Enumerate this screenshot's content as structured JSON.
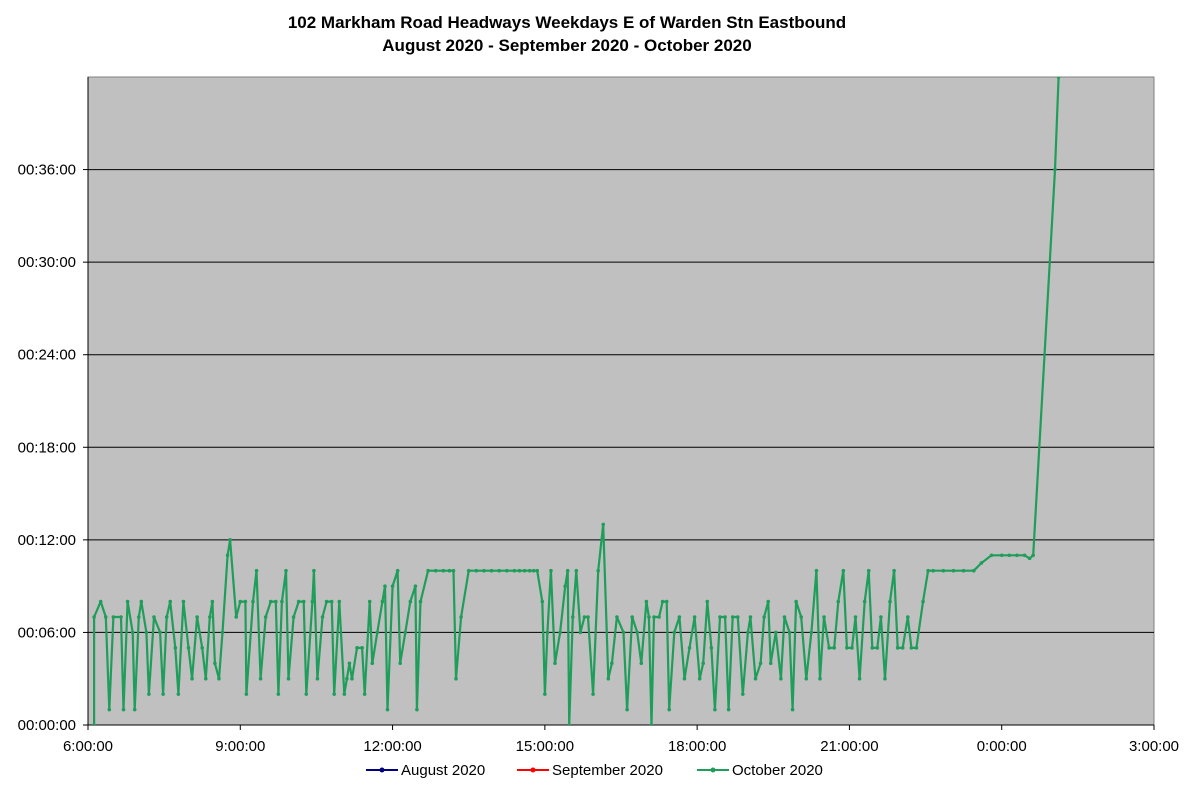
{
  "chart_data": {
    "type": "line",
    "title": "102 Markham Road Headways Weekdays E of Warden Stn Eastbound",
    "subtitle": "August 2020 - September 2020 - October 2020",
    "xlabel": "",
    "ylabel": "",
    "x_unit": "hours since 0:00",
    "y_unit": "minutes",
    "xlim": [
      6,
      27
    ],
    "ylim": [
      0,
      42
    ],
    "x_ticks": [
      {
        "value": 6,
        "label": "6:00:00"
      },
      {
        "value": 9,
        "label": "9:00:00"
      },
      {
        "value": 12,
        "label": "12:00:00"
      },
      {
        "value": 15,
        "label": "15:00:00"
      },
      {
        "value": 18,
        "label": "18:00:00"
      },
      {
        "value": 21,
        "label": "21:00:00"
      },
      {
        "value": 24,
        "label": "0:00:00"
      },
      {
        "value": 27,
        "label": "3:00:00"
      }
    ],
    "y_ticks": [
      {
        "value": 0,
        "label": "00:00:00"
      },
      {
        "value": 6,
        "label": "00:06:00"
      },
      {
        "value": 12,
        "label": "00:12:00"
      },
      {
        "value": 18,
        "label": "00:18:00"
      },
      {
        "value": 24,
        "label": "00:24:00"
      },
      {
        "value": 30,
        "label": "00:30:00"
      },
      {
        "value": 36,
        "label": "00:36:00"
      }
    ],
    "grid": {
      "horizontal": true,
      "vertical": false
    },
    "plot_background": "#c0c0c0",
    "legend_position": "bottom",
    "series": [
      {
        "name": "August 2020",
        "color": "#000080",
        "points": []
      },
      {
        "name": "September 2020",
        "color": "#ff0000",
        "points": []
      },
      {
        "name": "October 2020",
        "color": "#1e9e5a",
        "points": [
          [
            6.12,
            0
          ],
          [
            6.12,
            7
          ],
          [
            6.25,
            8
          ],
          [
            6.35,
            7
          ],
          [
            6.42,
            1
          ],
          [
            6.5,
            7
          ],
          [
            6.65,
            7
          ],
          [
            6.7,
            1
          ],
          [
            6.78,
            8
          ],
          [
            6.88,
            6
          ],
          [
            6.92,
            1
          ],
          [
            7.0,
            7
          ],
          [
            7.05,
            8
          ],
          [
            7.15,
            6
          ],
          [
            7.2,
            2
          ],
          [
            7.3,
            7
          ],
          [
            7.42,
            6
          ],
          [
            7.48,
            2
          ],
          [
            7.55,
            7
          ],
          [
            7.62,
            8
          ],
          [
            7.72,
            5
          ],
          [
            7.78,
            2
          ],
          [
            7.88,
            8
          ],
          [
            7.98,
            5
          ],
          [
            8.05,
            3
          ],
          [
            8.15,
            7
          ],
          [
            8.25,
            5
          ],
          [
            8.32,
            3
          ],
          [
            8.4,
            7
          ],
          [
            8.45,
            8
          ],
          [
            8.5,
            4
          ],
          [
            8.58,
            3
          ],
          [
            8.65,
            6
          ],
          [
            8.75,
            11
          ],
          [
            8.8,
            12
          ],
          [
            8.92,
            7
          ],
          [
            9.0,
            8
          ],
          [
            9.1,
            8
          ],
          [
            9.12,
            2
          ],
          [
            9.25,
            8
          ],
          [
            9.32,
            10
          ],
          [
            9.4,
            3
          ],
          [
            9.5,
            7
          ],
          [
            9.6,
            8
          ],
          [
            9.7,
            8
          ],
          [
            9.75,
            2
          ],
          [
            9.82,
            8
          ],
          [
            9.9,
            10
          ],
          [
            9.95,
            3
          ],
          [
            10.05,
            7
          ],
          [
            10.15,
            8
          ],
          [
            10.25,
            8
          ],
          [
            10.3,
            2
          ],
          [
            10.42,
            8
          ],
          [
            10.45,
            10
          ],
          [
            10.52,
            3
          ],
          [
            10.62,
            7
          ],
          [
            10.7,
            8
          ],
          [
            10.8,
            8
          ],
          [
            10.85,
            2
          ],
          [
            10.95,
            8
          ],
          [
            11.05,
            2
          ],
          [
            11.1,
            3
          ],
          [
            11.15,
            4
          ],
          [
            11.2,
            3
          ],
          [
            11.3,
            5
          ],
          [
            11.4,
            5
          ],
          [
            11.45,
            2
          ],
          [
            11.55,
            8
          ],
          [
            11.6,
            4
          ],
          [
            11.7,
            6
          ],
          [
            11.8,
            8
          ],
          [
            11.85,
            9
          ],
          [
            11.9,
            1
          ],
          [
            12.0,
            9
          ],
          [
            12.1,
            10
          ],
          [
            12.15,
            4
          ],
          [
            12.25,
            6
          ],
          [
            12.35,
            8
          ],
          [
            12.45,
            9
          ],
          [
            12.48,
            1
          ],
          [
            12.55,
            8
          ],
          [
            12.7,
            10
          ],
          [
            12.85,
            10
          ],
          [
            13.0,
            10
          ],
          [
            13.12,
            10
          ],
          [
            13.2,
            10
          ],
          [
            13.25,
            3
          ],
          [
            13.35,
            7
          ],
          [
            13.5,
            10
          ],
          [
            13.65,
            10
          ],
          [
            13.8,
            10
          ],
          [
            13.95,
            10
          ],
          [
            14.1,
            10
          ],
          [
            14.25,
            10
          ],
          [
            14.4,
            10
          ],
          [
            14.5,
            10
          ],
          [
            14.6,
            10
          ],
          [
            14.7,
            10
          ],
          [
            14.78,
            10
          ],
          [
            14.85,
            10
          ],
          [
            14.95,
            8
          ],
          [
            15.0,
            2
          ],
          [
            15.05,
            6
          ],
          [
            15.12,
            10
          ],
          [
            15.2,
            4
          ],
          [
            15.3,
            6
          ],
          [
            15.4,
            9
          ],
          [
            15.45,
            10
          ],
          [
            15.48,
            0
          ],
          [
            15.55,
            7
          ],
          [
            15.62,
            10
          ],
          [
            15.7,
            6
          ],
          [
            15.78,
            7
          ],
          [
            15.85,
            7
          ],
          [
            15.95,
            2
          ],
          [
            16.05,
            10
          ],
          [
            16.15,
            13
          ],
          [
            16.25,
            3
          ],
          [
            16.32,
            4
          ],
          [
            16.42,
            7
          ],
          [
            16.55,
            6
          ],
          [
            16.62,
            1
          ],
          [
            16.72,
            7
          ],
          [
            16.82,
            6
          ],
          [
            16.9,
            4
          ],
          [
            17.0,
            8
          ],
          [
            17.05,
            7
          ],
          [
            17.1,
            0
          ],
          [
            17.15,
            7
          ],
          [
            17.25,
            7
          ],
          [
            17.32,
            8
          ],
          [
            17.4,
            8
          ],
          [
            17.45,
            1
          ],
          [
            17.55,
            6
          ],
          [
            17.65,
            7
          ],
          [
            17.75,
            3
          ],
          [
            17.85,
            5
          ],
          [
            17.95,
            7
          ],
          [
            18.05,
            3
          ],
          [
            18.12,
            4
          ],
          [
            18.2,
            8
          ],
          [
            18.28,
            5
          ],
          [
            18.35,
            1
          ],
          [
            18.45,
            7
          ],
          [
            18.55,
            7
          ],
          [
            18.62,
            1
          ],
          [
            18.7,
            7
          ],
          [
            18.8,
            7
          ],
          [
            18.9,
            2
          ],
          [
            19.0,
            6
          ],
          [
            19.05,
            7
          ],
          [
            19.15,
            3
          ],
          [
            19.25,
            4
          ],
          [
            19.32,
            7
          ],
          [
            19.4,
            8
          ],
          [
            19.45,
            4
          ],
          [
            19.55,
            6
          ],
          [
            19.65,
            3
          ],
          [
            19.72,
            7
          ],
          [
            19.82,
            6
          ],
          [
            19.88,
            1
          ],
          [
            19.95,
            8
          ],
          [
            20.05,
            7
          ],
          [
            20.15,
            3
          ],
          [
            20.25,
            6
          ],
          [
            20.35,
            10
          ],
          [
            20.42,
            3
          ],
          [
            20.5,
            7
          ],
          [
            20.6,
            5
          ],
          [
            20.7,
            5
          ],
          [
            20.78,
            8
          ],
          [
            20.88,
            10
          ],
          [
            20.95,
            5
          ],
          [
            21.05,
            5
          ],
          [
            21.12,
            7
          ],
          [
            21.2,
            3
          ],
          [
            21.3,
            8
          ],
          [
            21.38,
            10
          ],
          [
            21.45,
            5
          ],
          [
            21.55,
            5
          ],
          [
            21.62,
            7
          ],
          [
            21.7,
            3
          ],
          [
            21.8,
            8
          ],
          [
            21.88,
            10
          ],
          [
            21.95,
            5
          ],
          [
            22.05,
            5
          ],
          [
            22.15,
            7
          ],
          [
            22.22,
            5
          ],
          [
            22.32,
            5
          ],
          [
            22.45,
            8
          ],
          [
            22.55,
            10
          ],
          [
            22.65,
            10
          ],
          [
            22.85,
            10
          ],
          [
            23.05,
            10
          ],
          [
            23.25,
            10
          ],
          [
            23.45,
            10
          ],
          [
            23.6,
            10.5
          ],
          [
            23.8,
            11
          ],
          [
            24.0,
            11
          ],
          [
            24.15,
            11
          ],
          [
            24.3,
            11
          ],
          [
            24.45,
            11
          ],
          [
            24.55,
            10.8
          ],
          [
            24.62,
            11
          ],
          [
            25.05,
            36
          ],
          [
            25.12,
            42
          ]
        ]
      }
    ]
  }
}
